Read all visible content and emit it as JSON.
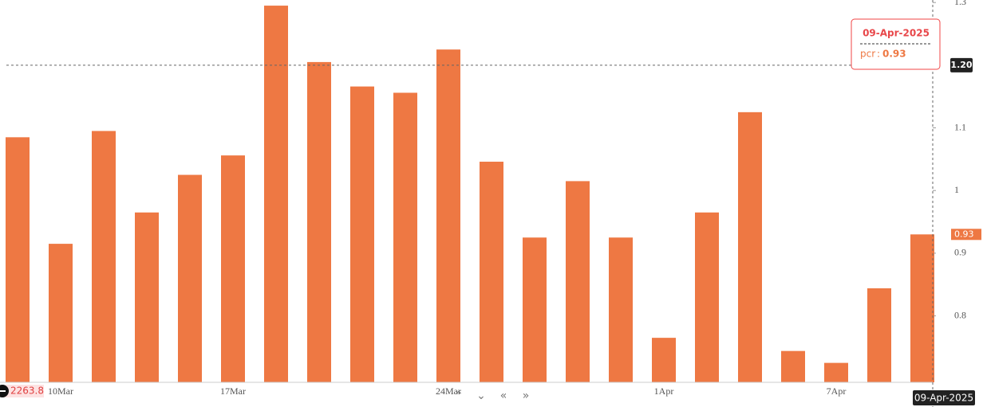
{
  "chart_data": {
    "type": "bar",
    "categories": [
      null,
      "10Mar",
      null,
      null,
      null,
      "17Mar",
      null,
      null,
      null,
      null,
      "24Mar",
      null,
      null,
      null,
      null,
      "1Apr",
      null,
      null,
      null,
      "7Apr",
      null,
      null
    ],
    "series": [
      {
        "name": "pcr",
        "color": "#ee7843",
        "values": [
          1.085,
          0.915,
          1.095,
          0.965,
          1.025,
          1.056,
          1.295,
          1.205,
          1.166,
          1.156,
          1.225,
          1.046,
          0.925,
          1.015,
          0.925,
          0.765,
          0.965,
          1.125,
          0.744,
          0.725,
          0.844,
          0.93
        ]
      }
    ],
    "ylim": [
      0.694,
      1.304
    ],
    "yticks": [
      0.8,
      0.9,
      1,
      1.1,
      1.2,
      1.3
    ],
    "crosshair": {
      "value": 1.2,
      "label": "1.20"
    },
    "tooltip": {
      "date": "09-Apr-2025"
    },
    "left_label": "2263.8"
  }
}
